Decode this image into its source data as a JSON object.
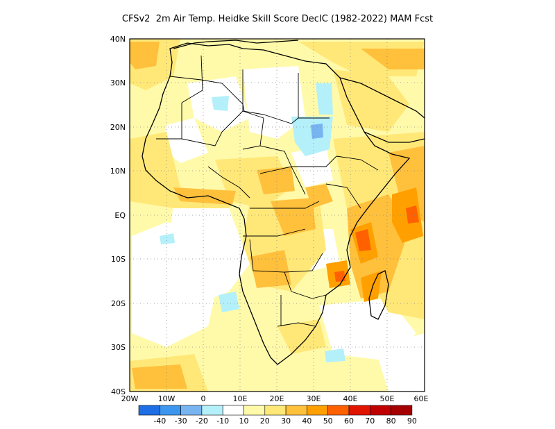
{
  "title": "CFSv2  2m Air Temp. Heidke Skill Score DecIC (1982-2022) MAM Fcst",
  "map": {
    "region": "Africa",
    "lon_range": [
      -20,
      60
    ],
    "lat_range": [
      -40,
      40
    ],
    "lat_labels": [
      "40N",
      "30N",
      "20N",
      "10N",
      "EQ",
      "10S",
      "20S",
      "30S",
      "40S"
    ],
    "lon_labels": [
      "20W",
      "10W",
      "0",
      "10E",
      "20E",
      "30E",
      "40E",
      "50E",
      "60E"
    ],
    "grid": "dotted"
  },
  "colorbar": {
    "colors": [
      "#1e6ee6",
      "#3c96f0",
      "#78b4f0",
      "#b4f0fa",
      "#ffffff",
      "#fffaaa",
      "#ffe878",
      "#ffc03c",
      "#ffa000",
      "#ff6000",
      "#e11400",
      "#c00000",
      "#a50000"
    ],
    "labels": [
      "-40",
      "-30",
      "-20",
      "-10",
      "10",
      "20",
      "30",
      "40",
      "50",
      "60",
      "70",
      "80",
      "90"
    ]
  }
}
